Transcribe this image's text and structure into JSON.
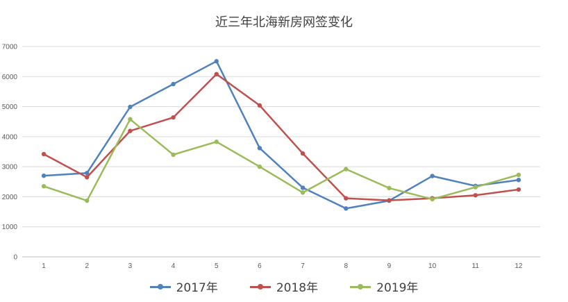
{
  "chart_data": {
    "type": "line",
    "title": "近三年北海新房网签变化",
    "xlabel": "",
    "ylabel": "",
    "categories": [
      "1",
      "2",
      "3",
      "4",
      "5",
      "6",
      "7",
      "8",
      "9",
      "10",
      "11",
      "12"
    ],
    "ylim": [
      0,
      7000
    ],
    "yticks": [
      0,
      1000,
      2000,
      3000,
      4000,
      5000,
      6000,
      7000
    ],
    "grid": true,
    "legend_position": "bottom",
    "series": [
      {
        "name": "2017年",
        "color": "#4F81BD",
        "values": [
          2700,
          2790,
          4990,
          5750,
          6510,
          3620,
          2300,
          1610,
          1870,
          2690,
          2360,
          2560
        ]
      },
      {
        "name": "2018年",
        "color": "#C0504D",
        "values": [
          3420,
          2650,
          4190,
          4640,
          6080,
          5040,
          3440,
          1950,
          1880,
          1950,
          2050,
          2240
        ]
      },
      {
        "name": "2019年",
        "color": "#9BBB59",
        "values": [
          2350,
          1870,
          4580,
          3400,
          3830,
          3000,
          2140,
          2920,
          2290,
          1920,
          2320,
          2730
        ]
      }
    ]
  }
}
